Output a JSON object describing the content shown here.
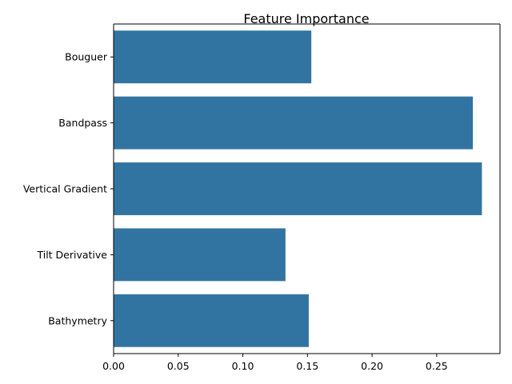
{
  "chart_data": {
    "type": "bar",
    "orientation": "horizontal",
    "title": "Feature Importance",
    "xlabel": "",
    "ylabel": "",
    "categories": [
      "Bouguer",
      "Bandpass",
      "Vertical Gradient",
      "Tilt Derivative",
      "Bathymetry"
    ],
    "values": [
      0.153,
      0.278,
      0.285,
      0.133,
      0.151
    ],
    "xlim": [
      0,
      0.299
    ],
    "xticks": [
      0.0,
      0.05,
      0.1,
      0.15,
      0.2,
      0.25
    ],
    "xtick_labels": [
      "0.00",
      "0.05",
      "0.10",
      "0.15",
      "0.20",
      "0.25"
    ],
    "bar_color": "#3274a1",
    "grid": false,
    "legend": "none"
  }
}
